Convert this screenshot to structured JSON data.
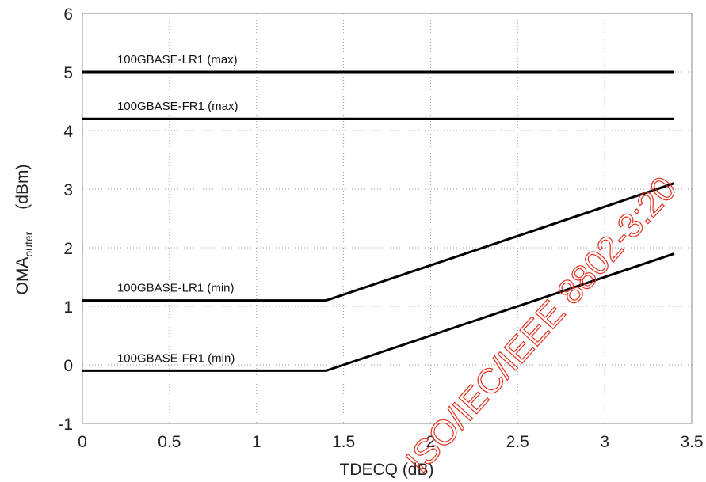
{
  "chart_data": {
    "type": "line",
    "title": "",
    "xlabel": "TDECQ (dB)",
    "ylabel_main": "OMA",
    "ylabel_sub": "outer",
    "ylabel_unit": "(dBm)",
    "xlim": [
      0,
      3.5
    ],
    "ylim": [
      -1,
      6
    ],
    "xticks": [
      "0",
      "0.5",
      "1",
      "1.5",
      "2",
      "2.5",
      "3",
      "3.5"
    ],
    "xtick_values": [
      0,
      0.5,
      1,
      1.5,
      2,
      2.5,
      3,
      3.5
    ],
    "yticks": [
      "-1",
      "0",
      "1",
      "2",
      "3",
      "4",
      "5",
      "6"
    ],
    "ytick_values": [
      -1,
      0,
      1,
      2,
      3,
      4,
      5,
      6
    ],
    "grid": true,
    "series": [
      {
        "name": "100GBASE-LR1 (max)",
        "x": [
          0,
          3.4
        ],
        "y": [
          5.0,
          5.0
        ],
        "label_at": [
          0.2,
          5.15
        ]
      },
      {
        "name": "100GBASE-FR1 (max)",
        "x": [
          0,
          3.4
        ],
        "y": [
          4.2,
          4.2
        ],
        "label_at": [
          0.2,
          4.35
        ]
      },
      {
        "name": "100GBASE-LR1 (min)",
        "x": [
          0,
          1.4,
          3.4
        ],
        "y": [
          1.1,
          1.1,
          3.1
        ],
        "label_at": [
          0.2,
          1.25
        ]
      },
      {
        "name": "100GBASE-FR1 (min)",
        "x": [
          0,
          1.4,
          3.4
        ],
        "y": [
          -0.1,
          -0.1,
          1.9
        ],
        "label_at": [
          0.2,
          0.05
        ]
      }
    ],
    "watermark": "ISO/IEC/IEEE 8802-3:20"
  }
}
